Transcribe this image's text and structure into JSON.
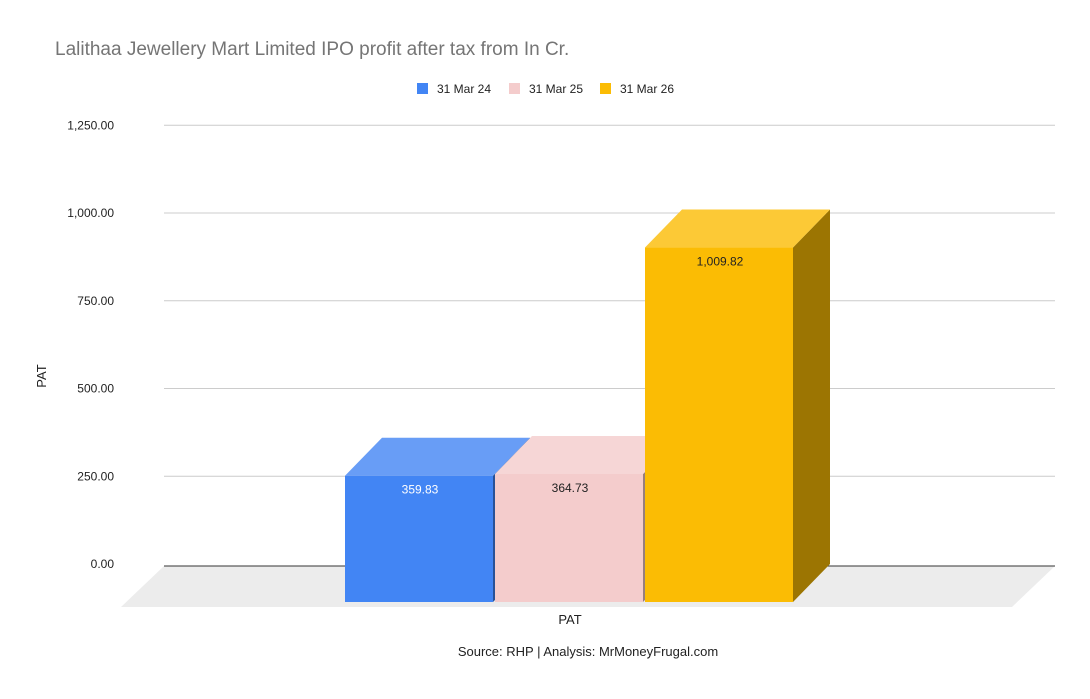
{
  "chart_data": {
    "type": "bar",
    "title": "Lalithaa Jewellery Mart Limited IPO profit after tax from In Cr.",
    "categories": [
      "PAT"
    ],
    "series": [
      {
        "name": "31 Mar 24",
        "values": [
          359.83
        ],
        "color": "#4285f4",
        "label": "359.83"
      },
      {
        "name": "31 Mar 25",
        "values": [
          364.73
        ],
        "color": "#f4cccc",
        "label": "364.73"
      },
      {
        "name": "31 Mar 26",
        "values": [
          1009.82
        ],
        "color": "#fbbc04",
        "label": "1,009.82"
      }
    ],
    "xlabel": "PAT",
    "ylabel": "PAT",
    "ylim": [
      0,
      1250
    ],
    "yticks": [
      "0.00",
      "250.00",
      "500.00",
      "750.00",
      "1,000.00",
      "1,250.00"
    ],
    "ytick_values": [
      0,
      250,
      500,
      750,
      1000,
      1250
    ],
    "legend_position": "top",
    "grid": true,
    "style_3d": true,
    "source_note": "Source: RHP | Analysis: MrMoneyFrugal.com"
  }
}
